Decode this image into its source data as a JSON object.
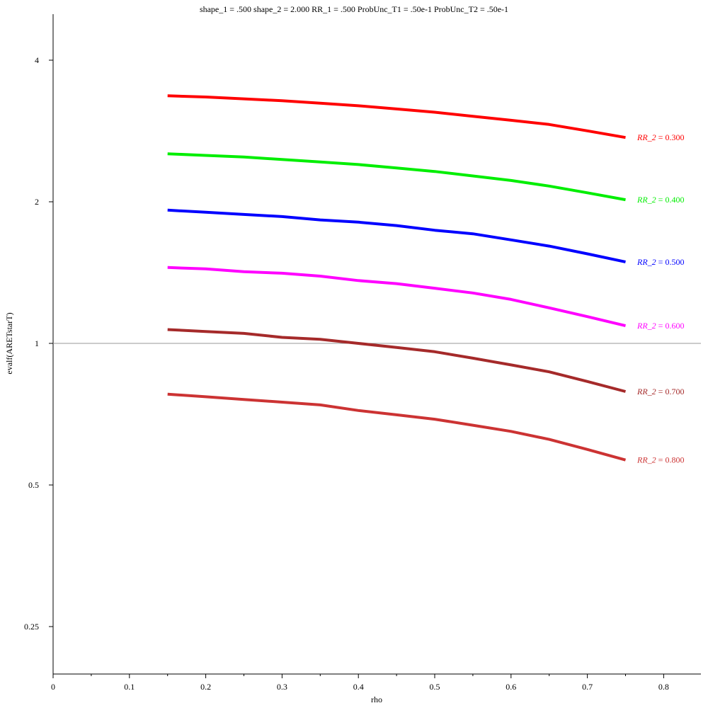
{
  "chart_data": {
    "type": "line",
    "title": "shape_1 = .500  shape_2 = 2.000  RR_1 = .500  ProbUnc_T1 = .50e-1  ProbUnc_T2 = .50e-1",
    "xlabel": "rho",
    "ylabel": "evalf(ARETstarT)",
    "xlim": [
      0,
      0.85
    ],
    "ylim": [
      0.2,
      4.8
    ],
    "y_scale": "log",
    "grid": false,
    "reference_line": {
      "y": 1,
      "color": "#999999"
    },
    "x_ticks": [
      "0",
      "0.1",
      "0.2",
      "0.3",
      "0.4",
      "0.5",
      "0.6",
      "0.7",
      "0.8"
    ],
    "y_ticks": [
      {
        "value": 4,
        "label": "4"
      },
      {
        "value": 2,
        "label": "2"
      },
      {
        "value": 1,
        "label": "1"
      },
      {
        "value": 0.5,
        "label": "0.5"
      },
      {
        "value": 0.25,
        "label": "0.25"
      }
    ],
    "x": [
      0.15,
      0.2,
      0.25,
      0.3,
      0.35,
      0.4,
      0.45,
      0.5,
      0.55,
      0.6,
      0.65,
      0.7,
      0.75
    ],
    "series": [
      {
        "label_prefix": "RR_2",
        "label_value": "= 0.300",
        "color": "#ff0000",
        "values": [
          3.36,
          3.34,
          3.31,
          3.28,
          3.24,
          3.2,
          3.15,
          3.1,
          3.04,
          2.98,
          2.92,
          2.83,
          2.74
        ]
      },
      {
        "label_prefix": "RR_2",
        "label_value": "= 0.400",
        "color": "#00ee00",
        "values": [
          2.53,
          2.51,
          2.49,
          2.46,
          2.43,
          2.4,
          2.36,
          2.32,
          2.27,
          2.22,
          2.16,
          2.09,
          2.02
        ]
      },
      {
        "label_prefix": "RR_2",
        "label_value": "= 0.500",
        "color": "#0000ff",
        "values": [
          1.92,
          1.9,
          1.88,
          1.86,
          1.83,
          1.81,
          1.78,
          1.74,
          1.71,
          1.66,
          1.61,
          1.55,
          1.49
        ]
      },
      {
        "label_prefix": "RR_2",
        "label_value": "= 0.600",
        "color": "#ff00ff",
        "values": [
          1.45,
          1.44,
          1.42,
          1.41,
          1.39,
          1.36,
          1.34,
          1.31,
          1.28,
          1.24,
          1.19,
          1.14,
          1.09
        ]
      },
      {
        "label_prefix": "RR_2",
        "label_value": "= 0.700",
        "color": "#a52a2a",
        "values": [
          1.07,
          1.06,
          1.05,
          1.03,
          1.02,
          1.0,
          0.98,
          0.96,
          0.93,
          0.9,
          0.87,
          0.83,
          0.79
        ]
      },
      {
        "label_prefix": "RR_2",
        "label_value": "= 0.800",
        "color": "#cc3333",
        "values": [
          0.78,
          0.77,
          0.76,
          0.75,
          0.74,
          0.72,
          0.705,
          0.69,
          0.67,
          0.65,
          0.625,
          0.595,
          0.565
        ]
      }
    ]
  }
}
